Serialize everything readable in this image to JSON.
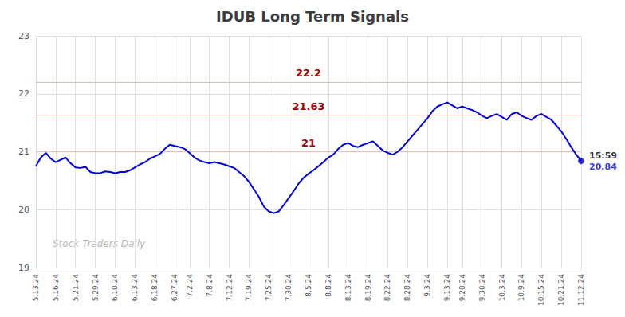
{
  "chart_data": {
    "type": "line",
    "title": "IDUB Long Term Signals",
    "categories": [
      "5.13.24",
      null,
      null,
      null,
      "5.16.24",
      null,
      null,
      null,
      "5.21.24",
      null,
      null,
      null,
      "5.29.24",
      null,
      null,
      null,
      "6.10.24",
      null,
      null,
      null,
      "6.13.24",
      null,
      null,
      null,
      "6.18.24",
      null,
      null,
      null,
      "6.27.24",
      null,
      null,
      "7.2.24",
      null,
      null,
      null,
      "7.8.24",
      null,
      null,
      null,
      "7.12.24",
      null,
      null,
      null,
      "7.19.24",
      null,
      null,
      null,
      "7.25.24",
      null,
      null,
      null,
      "7.30.24",
      null,
      null,
      null,
      "8.5.24",
      null,
      null,
      null,
      "8.8.24",
      null,
      null,
      null,
      "8.13.24",
      null,
      null,
      null,
      "8.19.24",
      null,
      null,
      null,
      "8.22.24",
      null,
      null,
      null,
      "8.28.24",
      null,
      null,
      null,
      "9.3.24",
      null,
      null,
      null,
      "9.13.24",
      null,
      null,
      "9.20.24",
      null,
      null,
      null,
      "9.30.24",
      null,
      null,
      null,
      "10.3.24",
      null,
      null,
      null,
      "10.9.24",
      null,
      null,
      null,
      "10.15.24",
      null,
      null,
      null,
      "10.21.24",
      null,
      null,
      null,
      "11.12.24"
    ],
    "values": [
      20.75,
      20.9,
      20.98,
      20.88,
      20.82,
      20.86,
      20.9,
      20.8,
      20.73,
      20.72,
      20.74,
      20.65,
      20.63,
      20.63,
      20.66,
      20.65,
      20.63,
      20.65,
      20.65,
      20.68,
      20.73,
      20.78,
      20.82,
      20.88,
      20.92,
      20.96,
      21.05,
      21.12,
      21.1,
      21.08,
      21.05,
      20.98,
      20.9,
      20.85,
      20.82,
      20.8,
      20.82,
      20.8,
      20.78,
      20.75,
      20.72,
      20.65,
      20.58,
      20.48,
      20.35,
      20.22,
      20.05,
      19.97,
      19.94,
      19.97,
      20.08,
      20.2,
      20.32,
      20.45,
      20.55,
      20.62,
      20.68,
      20.75,
      20.82,
      20.9,
      20.95,
      21.05,
      21.12,
      21.15,
      21.1,
      21.08,
      21.12,
      21.15,
      21.18,
      21.1,
      21.02,
      20.98,
      20.95,
      21.0,
      21.08,
      21.18,
      21.28,
      21.38,
      21.48,
      21.58,
      21.7,
      21.78,
      21.82,
      21.85,
      21.8,
      21.75,
      21.78,
      21.75,
      21.72,
      21.68,
      21.62,
      21.58,
      21.62,
      21.65,
      21.6,
      21.55,
      21.65,
      21.68,
      21.62,
      21.58,
      21.55,
      21.62,
      21.65,
      21.6,
      21.55,
      21.45,
      21.35,
      21.22,
      21.08,
      20.95,
      20.84
    ],
    "color": "#0000cc",
    "ylim": [
      19,
      23
    ],
    "yticks": [
      19,
      20,
      21,
      22,
      23
    ],
    "grid": true,
    "hlines": [
      {
        "y": 22.2,
        "label": "22.2",
        "color": "#f5b8b8",
        "label_color": "#990000"
      },
      {
        "y": 21.63,
        "label": "21.63",
        "color": "#f5b8b8",
        "label_color": "#990000"
      },
      {
        "y": 21.0,
        "label": "21",
        "color": "#f5b8b8",
        "label_color": "#990000"
      }
    ],
    "end_labels": [
      {
        "text": "15:59",
        "color": "#000000"
      },
      {
        "text": "20.84",
        "color": "#0000cc"
      }
    ],
    "watermark": "Stock Traders Daily"
  }
}
